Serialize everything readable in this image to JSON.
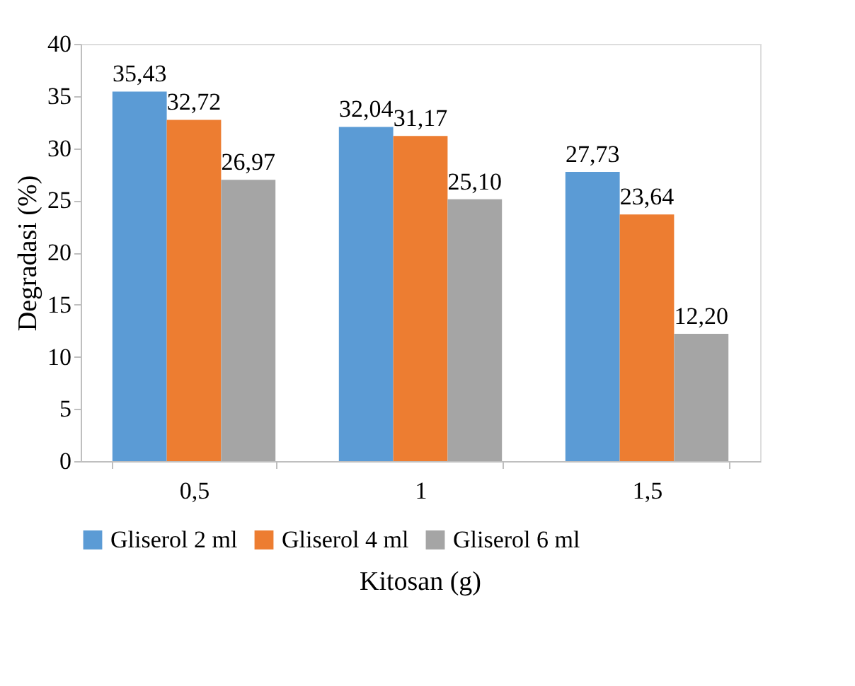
{
  "chart_data": {
    "type": "bar",
    "xlabel": "Kitosan (g)",
    "ylabel": "Degradasi (%)",
    "categories": [
      "0,5",
      "1",
      "1,5"
    ],
    "series": [
      {
        "name": "Gliserol 2 ml",
        "color": "#5b9bd5",
        "values": [
          35.43,
          32.04,
          27.73
        ],
        "value_labels": [
          "35,43",
          "32,04",
          "27,73"
        ]
      },
      {
        "name": "Gliserol 4 ml",
        "color": "#ed7d31",
        "values": [
          32.72,
          31.17,
          23.64
        ],
        "value_labels": [
          "32,72",
          "31,17",
          "23,64"
        ]
      },
      {
        "name": "Gliserol 6 ml",
        "color": "#a5a5a5",
        "values": [
          26.97,
          25.1,
          12.2
        ],
        "value_labels": [
          "26,97",
          "25,10",
          "12,20"
        ]
      }
    ],
    "ylim": [
      0,
      40
    ],
    "yticks": [
      0,
      5,
      10,
      15,
      20,
      25,
      30,
      35,
      40
    ],
    "grid": false,
    "legend": "bottom"
  }
}
